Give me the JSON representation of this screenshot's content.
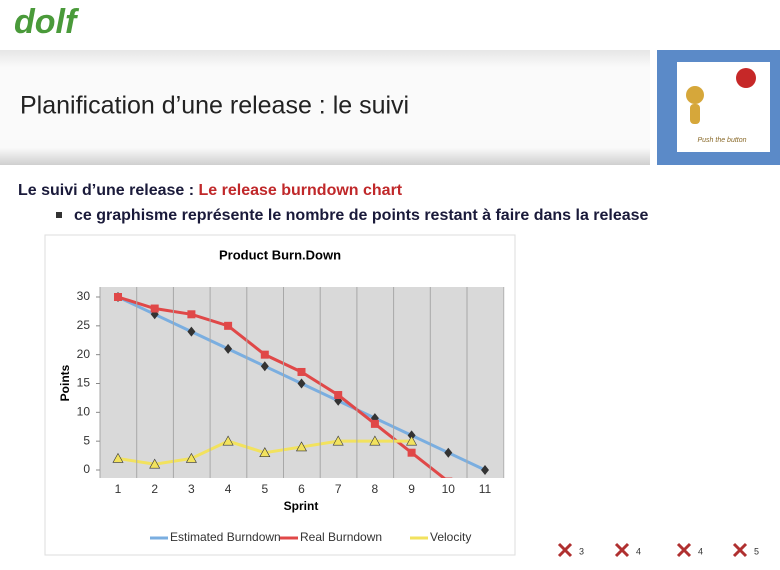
{
  "logo": "dolf",
  "header": {
    "title": "Planification d’une release : le suivi",
    "image_caption": "Push the button"
  },
  "heading": {
    "lead": "Le suivi d’une release : ",
    "emphasis": "Le release burndown chart"
  },
  "bullet": "ce graphisme représente le nombre de points restant à faire dans la release",
  "footer": {
    "icons": [
      "3",
      "4",
      "4",
      "5"
    ]
  },
  "chart_data": {
    "type": "line",
    "title": "Product Burn.Down",
    "x_label": "Sprint",
    "y_label": "Points",
    "categories": [
      "1",
      "2",
      "3",
      "4",
      "5",
      "6",
      "7",
      "8",
      "9",
      "10",
      "11"
    ],
    "series": [
      {
        "name": "Estimated Burndown",
        "color": "#7aaee0",
        "marker": "diamond",
        "values": [
          30,
          27,
          24,
          21,
          18,
          15,
          12,
          9,
          6,
          3,
          0
        ]
      },
      {
        "name": "Real Burndown",
        "color": "#e04848",
        "marker": "square",
        "values": [
          30,
          28,
          27,
          25,
          20,
          17,
          13,
          8,
          3,
          -2,
          null
        ]
      },
      {
        "name": "Velocity",
        "color": "#f2e25e",
        "marker": "triangle",
        "values": [
          2,
          1,
          2,
          5,
          3,
          4,
          5,
          5,
          5,
          null,
          null
        ]
      }
    ],
    "ylim": [
      0,
      30
    ],
    "yticks": [
      0,
      5,
      10,
      15,
      20,
      25,
      30
    ],
    "grid": true,
    "legend": "bottom"
  }
}
